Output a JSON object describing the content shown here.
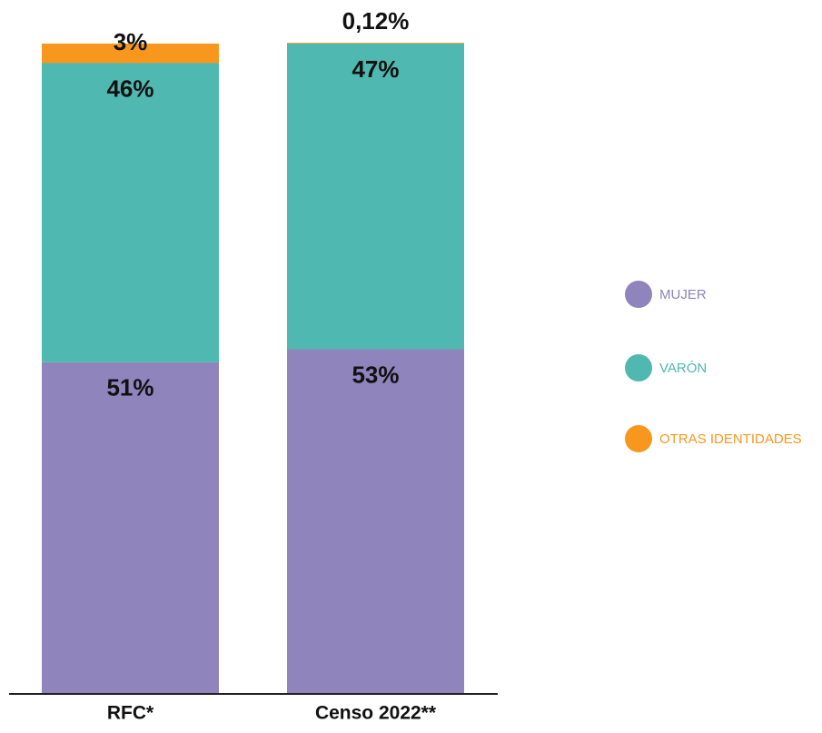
{
  "chart_data": {
    "type": "stacked_bar",
    "categories": [
      "RFC*",
      "Censo 2022**"
    ],
    "series": [
      {
        "name": "MUJER",
        "color": "#8f84bb",
        "values": [
          51,
          53
        ],
        "value_labels": [
          "51%",
          "53%"
        ]
      },
      {
        "name": "VARÓN",
        "color": "#4fb8b0",
        "values": [
          46,
          47
        ],
        "value_labels": [
          "46%",
          "47%"
        ]
      },
      {
        "name": "OTRAS IDENTIDADES",
        "color": "#f7971d",
        "values": [
          3,
          0.12
        ],
        "value_labels": [
          "3%",
          "0,12%"
        ]
      }
    ],
    "ylim": [
      0,
      100
    ]
  }
}
